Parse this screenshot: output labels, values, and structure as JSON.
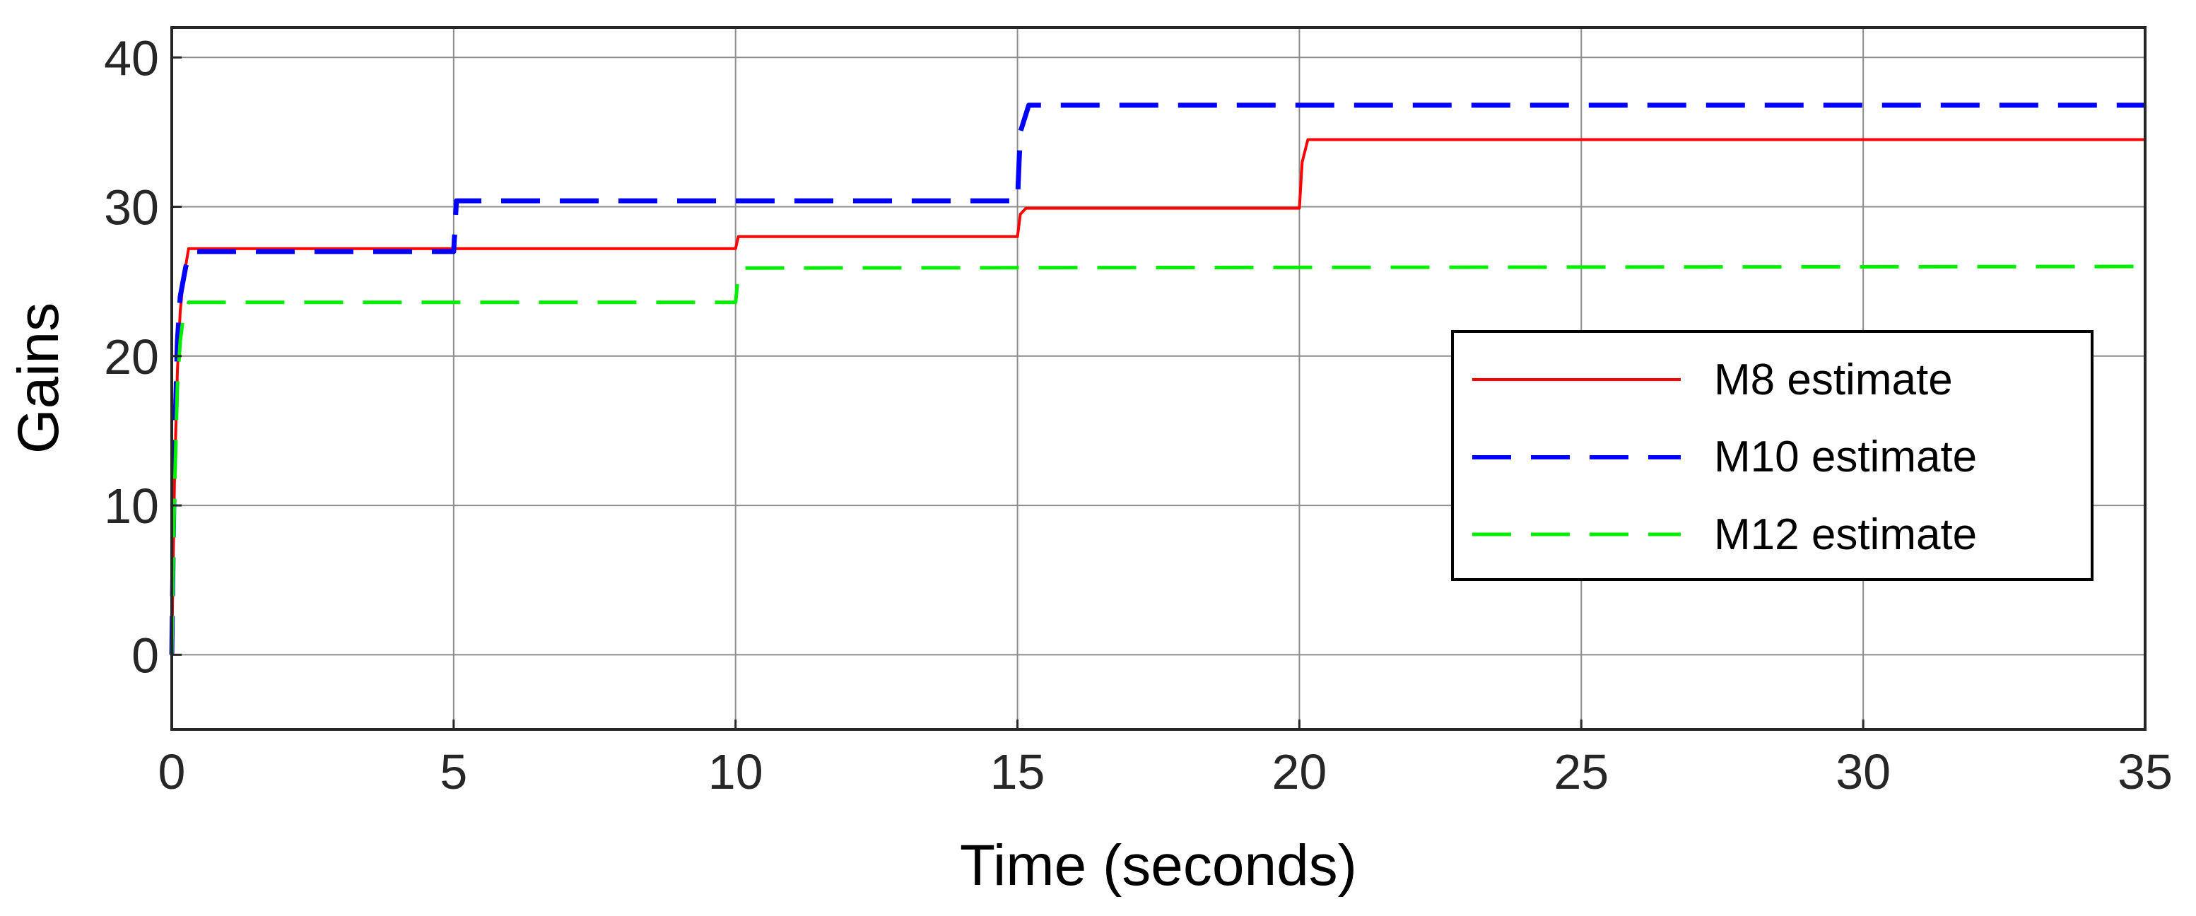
{
  "chart_data": {
    "type": "line",
    "title": "",
    "xlabel": "Time (seconds)",
    "ylabel": "Gains",
    "xlim": [
      0,
      35
    ],
    "ylim": [
      -5,
      42
    ],
    "xticks": [
      0,
      5,
      10,
      15,
      20,
      25,
      30,
      35
    ],
    "yticks": [
      0,
      10,
      20,
      30,
      40
    ],
    "grid": true,
    "legend_position": "center-right",
    "series": [
      {
        "name": "M8 estimate",
        "color": "#ff0000",
        "dash": "solid",
        "points": [
          [
            0,
            0
          ],
          [
            0.05,
            12
          ],
          [
            0.1,
            19
          ],
          [
            0.15,
            23
          ],
          [
            0.2,
            25
          ],
          [
            0.3,
            27.2
          ],
          [
            5,
            27.2
          ],
          [
            10,
            27.2
          ],
          [
            10.05,
            28
          ],
          [
            15,
            28
          ],
          [
            15.05,
            29.5
          ],
          [
            15.15,
            29.9
          ],
          [
            20,
            29.9
          ],
          [
            20.05,
            33
          ],
          [
            20.15,
            34.5
          ],
          [
            35,
            34.5
          ]
        ]
      },
      {
        "name": "M10 estimate",
        "color": "#0000ff",
        "dash": "dashed",
        "points": [
          [
            0,
            0
          ],
          [
            0.05,
            14
          ],
          [
            0.1,
            21
          ],
          [
            0.15,
            24
          ],
          [
            0.25,
            26
          ],
          [
            0.35,
            27
          ],
          [
            5,
            27
          ],
          [
            5.05,
            30.4
          ],
          [
            15,
            30.4
          ],
          [
            15.05,
            35
          ],
          [
            15.2,
            36.8
          ],
          [
            35,
            36.8
          ]
        ]
      },
      {
        "name": "M12 estimate",
        "color": "#00ee00",
        "dash": "dashed",
        "points": [
          [
            0,
            0
          ],
          [
            0.05,
            11
          ],
          [
            0.1,
            18
          ],
          [
            0.15,
            21
          ],
          [
            0.2,
            22.5
          ],
          [
            0.3,
            23.6
          ],
          [
            10,
            23.6
          ],
          [
            10.05,
            25.5
          ],
          [
            10.15,
            25.9
          ],
          [
            35,
            26
          ]
        ]
      }
    ]
  }
}
